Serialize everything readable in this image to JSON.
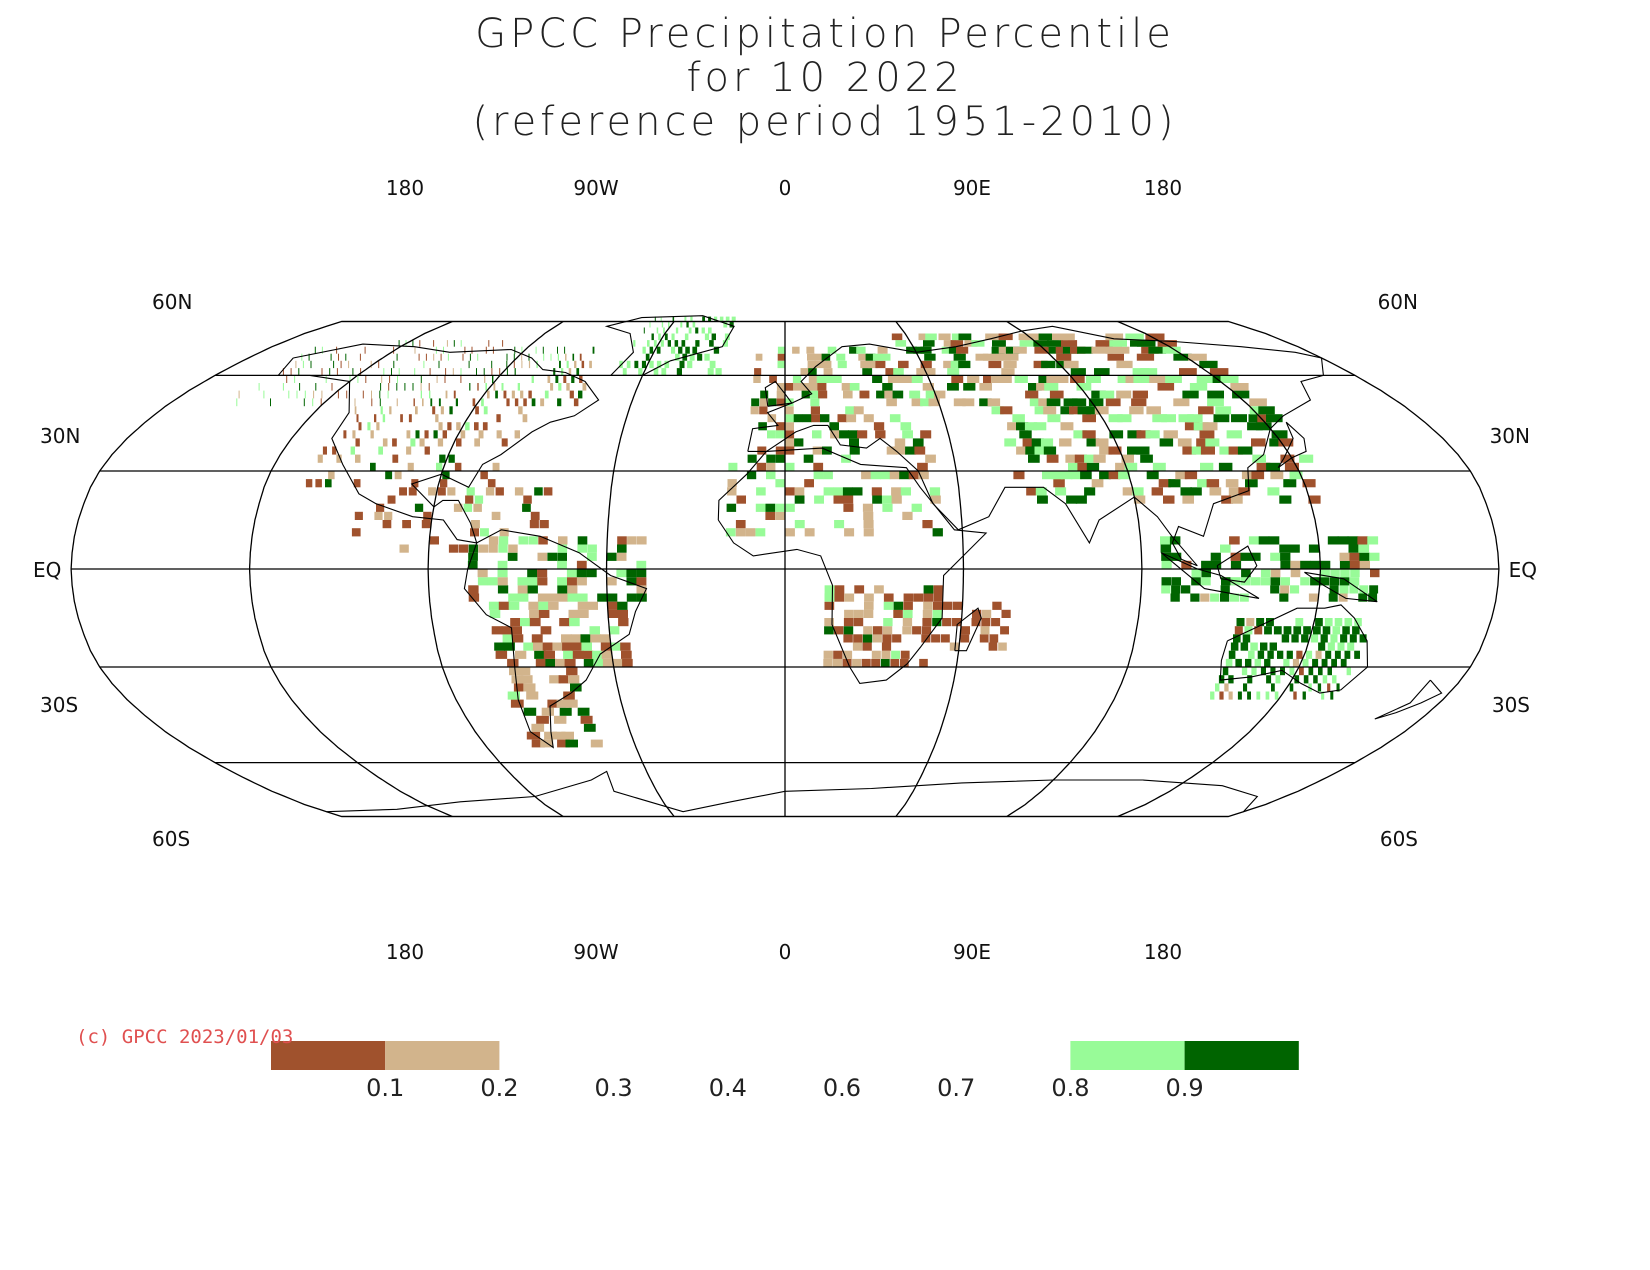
{
  "title": {
    "line1": "GPCC Precipitation Percentile",
    "line2": "for 10 2022",
    "line3": "(reference period 1951-2010)"
  },
  "map": {
    "projection": "Robinson",
    "lon_labels": [
      "180",
      "90W",
      "0",
      "90E",
      "180"
    ],
    "lat_labels_left": [
      "60N",
      "30N",
      "EQ",
      "30S",
      "60S"
    ],
    "lat_labels_right": [
      "60N",
      "30N",
      "EQ",
      "30S",
      "60S"
    ],
    "colors": {
      "p_0_0.1": "#a0522d",
      "p_0.1_0.2": "#d2b48c",
      "p_0.8_0.9": "#98fb98",
      "p_0.9_1": "#006400",
      "grid": "#000000"
    }
  },
  "copyright": "(c) GPCC 2023/01/03",
  "legend": {
    "ticks": [
      "0.1",
      "0.2",
      "0.3",
      "0.4",
      "0.6",
      "0.7",
      "0.8",
      "0.9"
    ],
    "bins": [
      {
        "range": "0 - 0.1",
        "color": "#a0522d"
      },
      {
        "range": "0.1 - 0.2",
        "color": "#d2b48c"
      },
      {
        "range": "0.2 - 0.3",
        "color": "#ffffff"
      },
      {
        "range": "0.3 - 0.4",
        "color": "#ffffff"
      },
      {
        "range": "0.4 - 0.6",
        "color": "#ffffff"
      },
      {
        "range": "0.6 - 0.7",
        "color": "#ffffff"
      },
      {
        "range": "0.7 - 0.8",
        "color": "#ffffff"
      },
      {
        "range": "0.8 - 0.9",
        "color": "#98fb98"
      },
      {
        "range": "0.9 - 1",
        "color": "#006400"
      }
    ]
  }
}
